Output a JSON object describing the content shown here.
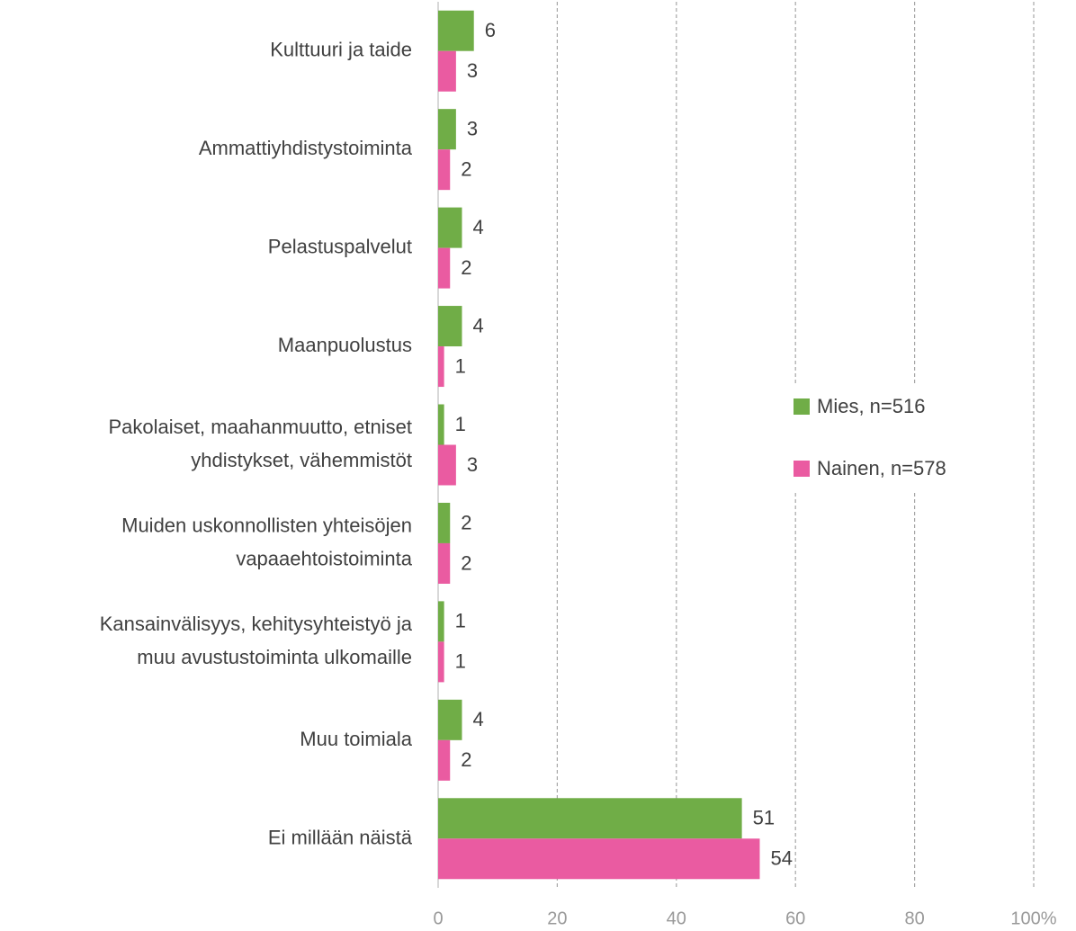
{
  "chart_data": {
    "type": "bar",
    "orientation": "horizontal",
    "categories": [
      "Kulttuuri ja taide",
      "Ammattiyhdistystoiminta",
      "Pelastuspalvelut",
      "Maanpuolustus",
      "Pakolaiset, maahanmuutto, etniset\nyhdistykset, vähemmistöt",
      "Muiden uskonnollisten yhteisöjen\nvapaaehtoistoiminta",
      "Kansainvälisyys, kehitysyhteistyö ja\nmuu avustustoiminta ulkomaille",
      "Muu toimiala",
      "Ei millään näistä"
    ],
    "series": [
      {
        "name": "Mies, n=516",
        "color": "#70ad47",
        "values": [
          6,
          3,
          4,
          4,
          1,
          2,
          1,
          4,
          51
        ]
      },
      {
        "name": "Nainen, n=578",
        "color": "#ea5ba1",
        "values": [
          3,
          2,
          2,
          1,
          3,
          2,
          1,
          2,
          54
        ]
      }
    ],
    "xlim": [
      0,
      100
    ],
    "xticks": [
      0,
      20,
      40,
      60,
      80,
      {
        "value": 100,
        "label": "100%"
      }
    ],
    "grid": true,
    "legend": "right"
  }
}
